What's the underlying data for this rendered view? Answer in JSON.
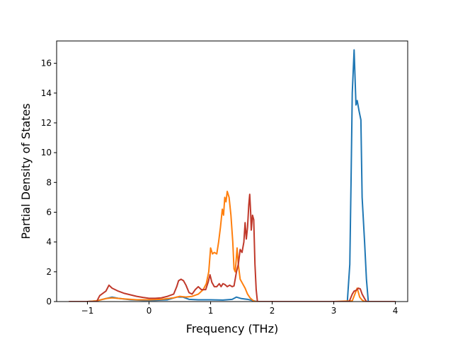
{
  "chart_data": {
    "type": "line",
    "title": "",
    "xlabel": "Frequency (THz)",
    "ylabel": "Partial Density of States",
    "xlim": [
      -1.5,
      4.2
    ],
    "ylim": [
      0,
      17.5
    ],
    "xticks": [
      -1,
      0,
      1,
      2,
      3,
      4
    ],
    "yticks": [
      0,
      2,
      4,
      6,
      8,
      10,
      12,
      14,
      16
    ],
    "xtick_labels": [
      "−1",
      "0",
      "1",
      "2",
      "3",
      "4"
    ],
    "ytick_labels": [
      "0",
      "2",
      "4",
      "6",
      "8",
      "10",
      "12",
      "14",
      "16"
    ],
    "grid": false,
    "legend": "none",
    "series": [
      {
        "color": "#1f77b4",
        "points": [
          [
            -1.3,
            0
          ],
          [
            -1.0,
            0
          ],
          [
            -0.85,
            0.05
          ],
          [
            -0.7,
            0.2
          ],
          [
            -0.6,
            0.3
          ],
          [
            -0.5,
            0.22
          ],
          [
            -0.3,
            0.12
          ],
          [
            -0.1,
            0.08
          ],
          [
            0.1,
            0.08
          ],
          [
            0.3,
            0.12
          ],
          [
            0.45,
            0.3
          ],
          [
            0.55,
            0.3
          ],
          [
            0.65,
            0.15
          ],
          [
            0.8,
            0.12
          ],
          [
            1.0,
            0.12
          ],
          [
            1.2,
            0.1
          ],
          [
            1.35,
            0.15
          ],
          [
            1.42,
            0.3
          ],
          [
            1.5,
            0.2
          ],
          [
            1.6,
            0.15
          ],
          [
            1.7,
            0.05
          ],
          [
            1.75,
            0
          ],
          [
            3.0,
            0
          ],
          [
            3.22,
            0
          ],
          [
            3.26,
            2.5
          ],
          [
            3.28,
            8
          ],
          [
            3.3,
            14
          ],
          [
            3.33,
            16.9
          ],
          [
            3.36,
            13.2
          ],
          [
            3.38,
            13.5
          ],
          [
            3.41,
            12.8
          ],
          [
            3.44,
            12.2
          ],
          [
            3.46,
            7
          ],
          [
            3.5,
            4
          ],
          [
            3.53,
            1.5
          ],
          [
            3.56,
            0
          ],
          [
            4.0,
            0
          ]
        ]
      },
      {
        "color": "#ff7f0e",
        "points": [
          [
            -1.3,
            0
          ],
          [
            -1.0,
            0
          ],
          [
            -0.85,
            0.05
          ],
          [
            -0.7,
            0.2
          ],
          [
            -0.6,
            0.25
          ],
          [
            -0.4,
            0.18
          ],
          [
            -0.2,
            0.12
          ],
          [
            0.0,
            0.12
          ],
          [
            0.2,
            0.15
          ],
          [
            0.4,
            0.25
          ],
          [
            0.5,
            0.35
          ],
          [
            0.6,
            0.3
          ],
          [
            0.7,
            0.35
          ],
          [
            0.8,
            0.5
          ],
          [
            0.88,
            0.8
          ],
          [
            0.93,
            1.2
          ],
          [
            0.97,
            2.0
          ],
          [
            1.0,
            3.6
          ],
          [
            1.03,
            3.2
          ],
          [
            1.06,
            3.3
          ],
          [
            1.1,
            3.2
          ],
          [
            1.13,
            4.0
          ],
          [
            1.16,
            5.0
          ],
          [
            1.19,
            6.2
          ],
          [
            1.21,
            5.8
          ],
          [
            1.23,
            7.0
          ],
          [
            1.25,
            6.7
          ],
          [
            1.27,
            7.4
          ],
          [
            1.3,
            7.0
          ],
          [
            1.33,
            5.8
          ],
          [
            1.36,
            4.0
          ],
          [
            1.38,
            2.2
          ],
          [
            1.4,
            2.0
          ],
          [
            1.43,
            3.6
          ],
          [
            1.45,
            2.5
          ],
          [
            1.48,
            1.5
          ],
          [
            1.52,
            1.2
          ],
          [
            1.56,
            0.9
          ],
          [
            1.6,
            0.5
          ],
          [
            1.64,
            0.25
          ],
          [
            1.68,
            0.1
          ],
          [
            1.72,
            0
          ],
          [
            3.0,
            0
          ],
          [
            3.3,
            0.05
          ],
          [
            3.38,
            0.9
          ],
          [
            3.42,
            0.3
          ],
          [
            3.46,
            0.1
          ],
          [
            3.5,
            0
          ],
          [
            4.0,
            0
          ]
        ]
      },
      {
        "color": "#c0392b",
        "points": [
          [
            -1.3,
            0
          ],
          [
            -0.85,
            0
          ],
          [
            -0.8,
            0.4
          ],
          [
            -0.7,
            0.7
          ],
          [
            -0.65,
            1.1
          ],
          [
            -0.6,
            0.9
          ],
          [
            -0.5,
            0.7
          ],
          [
            -0.4,
            0.55
          ],
          [
            -0.3,
            0.45
          ],
          [
            -0.2,
            0.35
          ],
          [
            -0.1,
            0.28
          ],
          [
            0.0,
            0.22
          ],
          [
            0.1,
            0.22
          ],
          [
            0.2,
            0.25
          ],
          [
            0.3,
            0.35
          ],
          [
            0.4,
            0.5
          ],
          [
            0.45,
            1.0
          ],
          [
            0.48,
            1.4
          ],
          [
            0.52,
            1.5
          ],
          [
            0.56,
            1.4
          ],
          [
            0.6,
            1.1
          ],
          [
            0.65,
            0.6
          ],
          [
            0.7,
            0.5
          ],
          [
            0.75,
            0.8
          ],
          [
            0.8,
            1.0
          ],
          [
            0.85,
            0.8
          ],
          [
            0.92,
            0.8
          ],
          [
            0.96,
            1.3
          ],
          [
            0.99,
            1.8
          ],
          [
            1.02,
            1.3
          ],
          [
            1.06,
            1.0
          ],
          [
            1.1,
            1.0
          ],
          [
            1.14,
            1.2
          ],
          [
            1.17,
            1.0
          ],
          [
            1.2,
            1.2
          ],
          [
            1.23,
            1.15
          ],
          [
            1.27,
            1.0
          ],
          [
            1.31,
            1.1
          ],
          [
            1.35,
            1.0
          ],
          [
            1.38,
            1.05
          ],
          [
            1.42,
            2.0
          ],
          [
            1.45,
            2.5
          ],
          [
            1.48,
            3.5
          ],
          [
            1.51,
            3.3
          ],
          [
            1.54,
            4.0
          ],
          [
            1.56,
            5.3
          ],
          [
            1.58,
            4.2
          ],
          [
            1.6,
            5.0
          ],
          [
            1.62,
            6.5
          ],
          [
            1.635,
            7.2
          ],
          [
            1.65,
            6.0
          ],
          [
            1.66,
            4.8
          ],
          [
            1.68,
            5.8
          ],
          [
            1.7,
            5.5
          ],
          [
            1.72,
            2.5
          ],
          [
            1.74,
            0.8
          ],
          [
            1.76,
            0
          ],
          [
            3.25,
            0
          ],
          [
            3.3,
            0.5
          ],
          [
            3.33,
            0.7
          ],
          [
            3.36,
            0.75
          ],
          [
            3.4,
            0.9
          ],
          [
            3.43,
            0.85
          ],
          [
            3.46,
            0.5
          ],
          [
            3.5,
            0.2
          ],
          [
            3.53,
            0
          ],
          [
            4.0,
            0
          ]
        ]
      }
    ]
  }
}
